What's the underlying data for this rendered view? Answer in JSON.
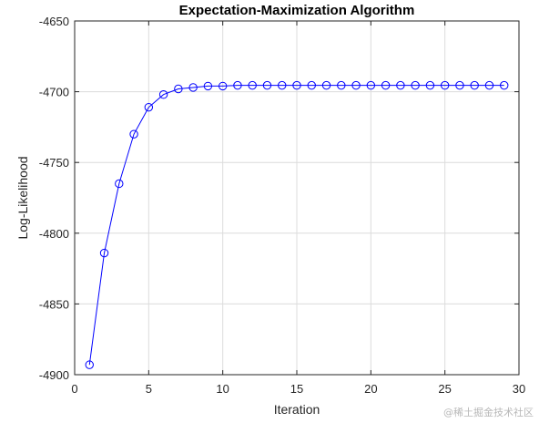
{
  "chart_data": {
    "type": "line",
    "title": "Expectation-Maximization Algorithm",
    "xlabel": "Iteration",
    "ylabel": "Log-Likelihood",
    "xlim": [
      0,
      30
    ],
    "ylim": [
      -4900,
      -4650
    ],
    "xticks": [
      0,
      5,
      10,
      15,
      20,
      25,
      30
    ],
    "yticks": [
      -4900,
      -4850,
      -4800,
      -4750,
      -4700,
      -4650
    ],
    "grid": true,
    "marker": "circle",
    "line_color": "#0000ff",
    "x": [
      1,
      2,
      3,
      4,
      5,
      6,
      7,
      8,
      9,
      10,
      11,
      12,
      13,
      14,
      15,
      16,
      17,
      18,
      19,
      20,
      21,
      22,
      23,
      24,
      25,
      26,
      27,
      28,
      29
    ],
    "y": [
      -4893,
      -4814,
      -4765,
      -4730,
      -4711,
      -4702,
      -4698,
      -4697,
      -4696,
      -4696,
      -4695.5,
      -4695.5,
      -4695.5,
      -4695.5,
      -4695.5,
      -4695.5,
      -4695.5,
      -4695.5,
      -4695.5,
      -4695.5,
      -4695.5,
      -4695.5,
      -4695.5,
      -4695.5,
      -4695.5,
      -4695.5,
      -4695.5,
      -4695.5,
      -4695.5
    ]
  },
  "watermark": "@稀土掘金技术社区"
}
